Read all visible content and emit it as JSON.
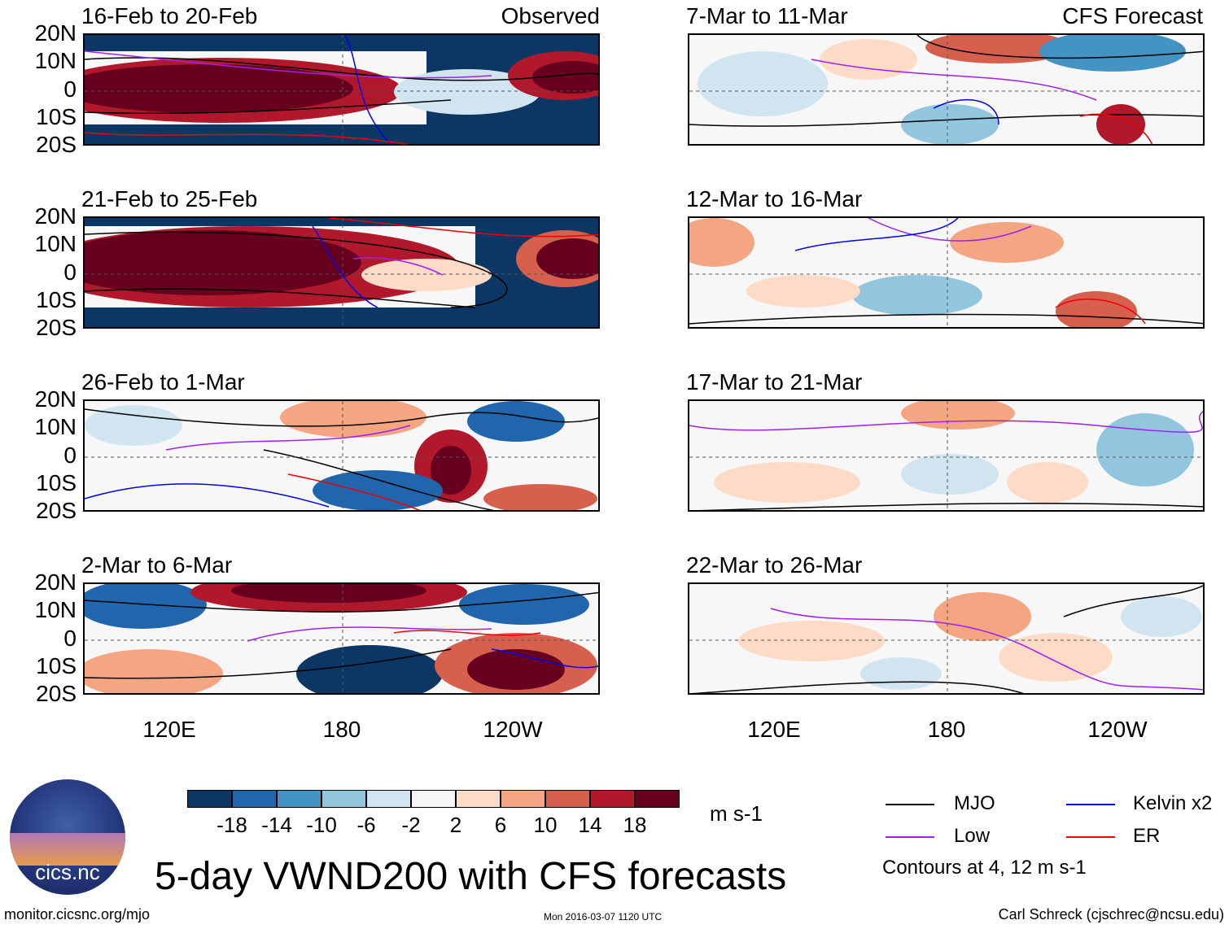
{
  "panels": [
    {
      "title": "16-Feb to 20-Feb",
      "corner_label": "Observed"
    },
    {
      "title": "21-Feb to 25-Feb",
      "corner_label": ""
    },
    {
      "title": "26-Feb to 1-Mar",
      "corner_label": ""
    },
    {
      "title": "2-Mar to 6-Mar",
      "corner_label": ""
    },
    {
      "title": "7-Mar to 11-Mar",
      "corner_label": "CFS Forecast"
    },
    {
      "title": "12-Mar to 16-Mar",
      "corner_label": ""
    },
    {
      "title": "17-Mar to 21-Mar",
      "corner_label": ""
    },
    {
      "title": "22-Mar to 26-Mar",
      "corner_label": ""
    }
  ],
  "lat_labels": [
    "20N",
    "10N",
    "0",
    "10S",
    "20S"
  ],
  "lon_labels": [
    "120E",
    "180",
    "120W"
  ],
  "colorbar": {
    "ticks": [
      "-18",
      "-14",
      "-10",
      "-6",
      "-2",
      "2",
      "6",
      "10",
      "14",
      "18"
    ],
    "colors": [
      "#0c3765",
      "#2166ac",
      "#4393c3",
      "#92c5de",
      "#d1e5f0",
      "#f7f7f7",
      "#fddbc7",
      "#f4a582",
      "#d6604d",
      "#b2182b",
      "#67001f"
    ],
    "units": "m s-1"
  },
  "legend": {
    "mjo": {
      "label": "MJO",
      "color": "#000000"
    },
    "kelvin": {
      "label": "Kelvin x2",
      "color": "#0000ee"
    },
    "low": {
      "label": "Low",
      "color": "#a020f0"
    },
    "er": {
      "label": "ER",
      "color": "#ee0000"
    },
    "contours_note": "Contours at 4, 12 m s-1"
  },
  "logo_text": "cics.nc",
  "main_title": "5-day VWND200 with CFS forecasts",
  "footer": {
    "left": "monitor.cicsnc.org/mjo",
    "center": "Mon 2016-03-07 1120 UTC",
    "right": "Carl Schreck (cjschrec@ncsu.edu)"
  }
}
